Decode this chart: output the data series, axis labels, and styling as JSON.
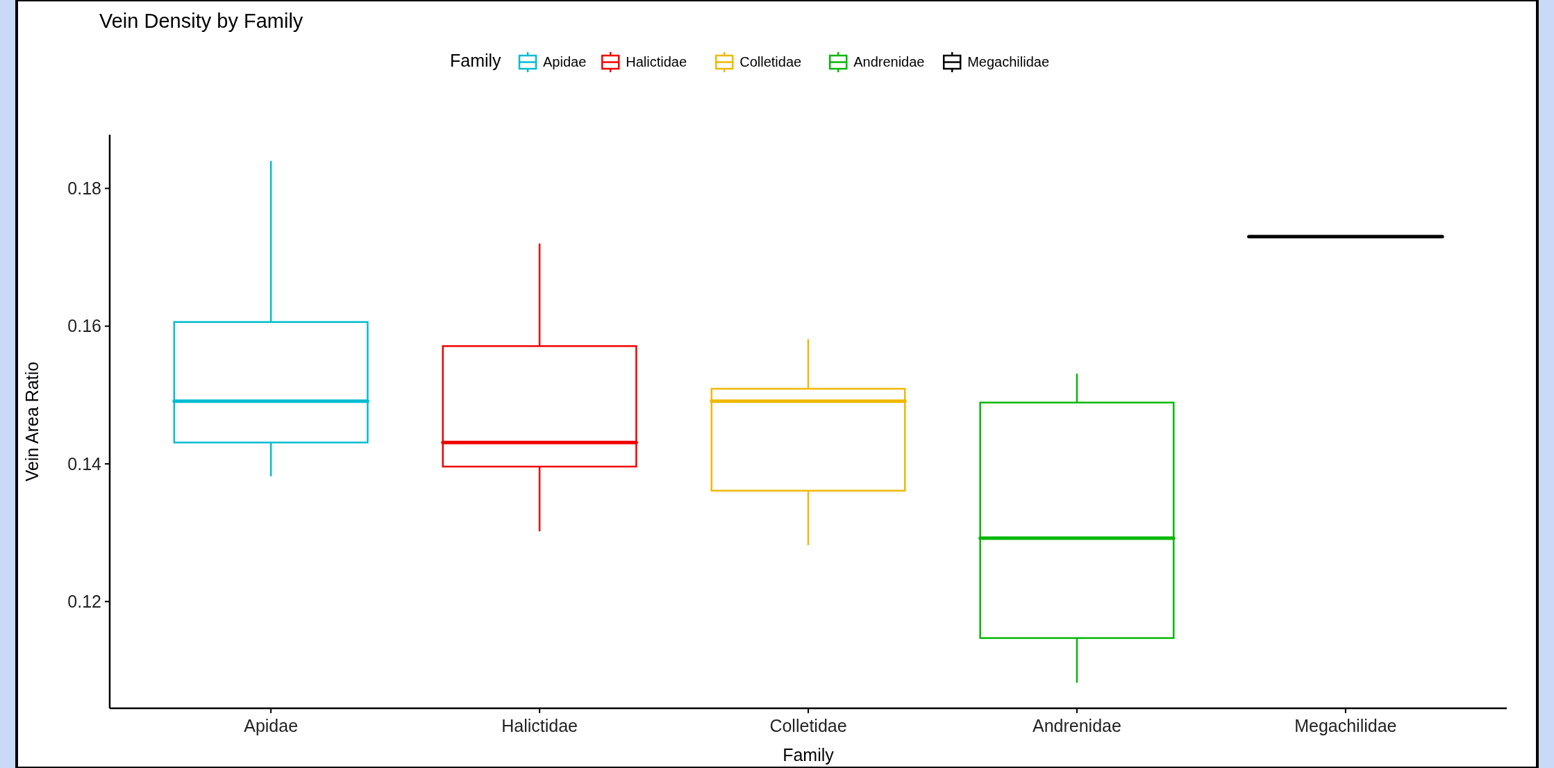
{
  "chart_data": {
    "type": "box",
    "title": "Vein Density by Family",
    "xlabel": "Family",
    "ylabel": "Vein Area Ratio",
    "legend_title": "Family",
    "legend": "top",
    "categories": [
      "Apidae",
      "Halictidae",
      "Colletidae",
      "Andrenidae",
      "Megachilidae"
    ],
    "series": [
      {
        "name": "Apidae",
        "color": "#00bcd0",
        "boxes": [
          {
            "low": 0.1382,
            "q1": 0.1431,
            "median": 0.1491,
            "q3": 0.1606,
            "high": 0.184
          },
          null,
          null,
          null,
          null
        ]
      },
      {
        "name": "Halictidae",
        "color": "#f00000",
        "boxes": [
          null,
          {
            "low": 0.1302,
            "q1": 0.1396,
            "median": 0.1431,
            "q3": 0.1571,
            "high": 0.172
          },
          null,
          null,
          null
        ]
      },
      {
        "name": "Colletidae",
        "color": "#f0b800",
        "boxes": [
          null,
          null,
          {
            "low": 0.1282,
            "q1": 0.1361,
            "median": 0.1491,
            "q3": 0.1509,
            "high": 0.1581
          },
          null,
          null
        ]
      },
      {
        "name": "Andrenidae",
        "color": "#00b800",
        "boxes": [
          null,
          null,
          null,
          {
            "low": 0.1082,
            "q1": 0.1147,
            "median": 0.1292,
            "q3": 0.1489,
            "high": 0.1531
          },
          null
        ]
      },
      {
        "name": "Megachilidae",
        "color": "#000000",
        "boxes": [
          null,
          null,
          null,
          null,
          {
            "low": 0.173,
            "q1": 0.173,
            "median": 0.173,
            "q3": 0.173,
            "high": 0.173
          }
        ]
      }
    ],
    "ylim": [
      0.1045,
      0.1878
    ],
    "yticks": [
      0.12,
      0.14,
      0.16,
      0.18
    ]
  }
}
